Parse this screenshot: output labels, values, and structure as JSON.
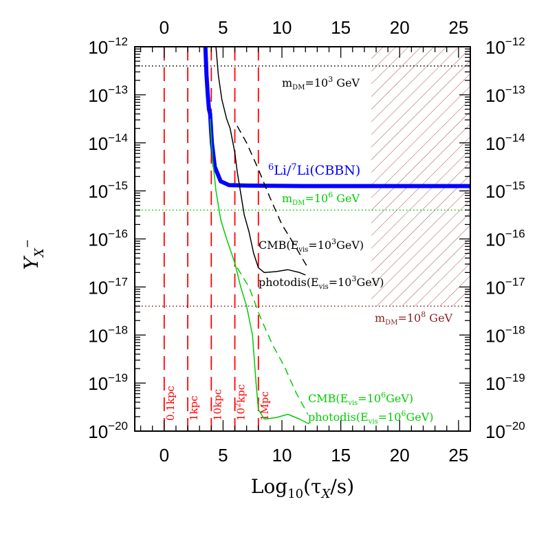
{
  "chart_data": {
    "type": "line",
    "title": "",
    "xlabel": {
      "main": "Log",
      "sub": "10",
      "rest": "(τ",
      "sub2": "X",
      "end": "/s)"
    },
    "ylabel": {
      "main": "Y",
      "sub": "X",
      "sup": "−"
    },
    "xlim": [
      -2.5,
      26
    ],
    "ylim_exponent": [
      -20,
      -12
    ],
    "yscale": "log",
    "x_ticks": [
      "0",
      "5",
      "10",
      "15",
      "20",
      "25"
    ],
    "x_tick_values": [
      0,
      5,
      10,
      15,
      20,
      25
    ],
    "y_tick_exponents": [
      -12,
      -13,
      -14,
      -15,
      -16,
      -17,
      -18,
      -19,
      -20
    ],
    "y_tick_base": "10",
    "grid": false,
    "horizontal_lines": [
      {
        "name": "m_DM=10^3 GeV",
        "log_y": -12.4,
        "color": "#000000"
      },
      {
        "name": "m_DM=10^6 GeV",
        "log_y": -15.4,
        "color": "#00cc00"
      },
      {
        "name": "m_DM=10^8 GeV",
        "log_y": -17.4,
        "color": "#8b2222"
      }
    ],
    "vertical_lines": [
      {
        "x": 0,
        "label": "0.1kpc"
      },
      {
        "x": 2,
        "label": "1kpc"
      },
      {
        "x": 4,
        "label": "10kpc"
      },
      {
        "x": 6,
        "label": "10^2kpc"
      },
      {
        "x": 8,
        "label": "1Mpc"
      }
    ],
    "hatched_region": {
      "x_from": 17.6,
      "x_to": 26,
      "log_y_from": -17.4,
      "log_y_to": -12,
      "color": "#a05050"
    },
    "series": [
      {
        "name": "6Li/7Li(CBBN)",
        "color": "#0000ff",
        "style": "thick",
        "points": [
          [
            3.5,
            -12
          ],
          [
            3.6,
            -12.6
          ],
          [
            3.7,
            -13.0
          ],
          [
            3.8,
            -13.3
          ],
          [
            3.9,
            -13.4
          ],
          [
            4.0,
            -13.8
          ],
          [
            4.05,
            -14.0
          ],
          [
            4.3,
            -14.5
          ],
          [
            4.8,
            -14.8
          ],
          [
            5.5,
            -14.88
          ],
          [
            7,
            -14.89
          ],
          [
            12,
            -14.9
          ],
          [
            26,
            -14.9
          ]
        ]
      },
      {
        "name": "CMB(E_vis=10^3GeV)",
        "color": "#000000",
        "style": "solid",
        "points": [
          [
            4.4,
            -12
          ],
          [
            4.6,
            -12.6
          ],
          [
            4.9,
            -13.1
          ],
          [
            5.3,
            -13.5
          ],
          [
            5.6,
            -13.7
          ],
          [
            6,
            -14.2
          ],
          [
            6.2,
            -14.6
          ],
          [
            6.5,
            -15.05
          ],
          [
            6.8,
            -15.5
          ],
          [
            7.2,
            -15.85
          ],
          [
            7.6,
            -16.3
          ],
          [
            8.0,
            -16.6
          ],
          [
            8.5,
            -16.7
          ],
          [
            9.5,
            -16.68
          ],
          [
            10.5,
            -16.64
          ],
          [
            11.5,
            -16.7
          ],
          [
            12,
            -16.75
          ]
        ]
      },
      {
        "name": "photodis(E_vis=10^3GeV)",
        "color": "#000000",
        "style": "dashed",
        "points": [
          [
            6.2,
            -13.65
          ],
          [
            7,
            -14.0
          ],
          [
            8,
            -14.55
          ],
          [
            9,
            -15.15
          ],
          [
            10,
            -15.7
          ],
          [
            11,
            -16.1
          ],
          [
            12.2,
            -16.6
          ]
        ]
      },
      {
        "name": "CMB(E_vis=10^6GeV)",
        "color": "#00cc00",
        "style": "solid",
        "points": [
          [
            3.9,
            -13.5
          ],
          [
            4.1,
            -14.3
          ],
          [
            4.4,
            -15.0
          ],
          [
            4.8,
            -15.6
          ],
          [
            5.3,
            -16.0
          ],
          [
            6,
            -16.5
          ],
          [
            6.5,
            -17.0
          ],
          [
            7,
            -17.4
          ],
          [
            7.5,
            -18.0
          ],
          [
            7.8,
            -19.0
          ],
          [
            8.0,
            -19.55
          ],
          [
            8.5,
            -19.75
          ],
          [
            9.5,
            -19.72
          ],
          [
            10.5,
            -19.65
          ],
          [
            11.5,
            -19.75
          ],
          [
            12.3,
            -19.85
          ]
        ]
      },
      {
        "name": "photodis(E_vis=10^6GeV)",
        "color": "#00cc00",
        "style": "dashed",
        "points": [
          [
            6.2,
            -16.6
          ],
          [
            7.2,
            -17.0
          ],
          [
            8.2,
            -17.65
          ],
          [
            9.2,
            -18.2
          ],
          [
            10.2,
            -18.65
          ],
          [
            11.2,
            -19.2
          ],
          [
            12.2,
            -19.65
          ]
        ]
      }
    ],
    "annotations": {
      "mdm3": {
        "pre": "m",
        "sub": "DM",
        "mid": "=10",
        "sup": "3",
        "post": " GeV",
        "color": "#000000"
      },
      "mdm6": {
        "pre": "m",
        "sub": "DM",
        "mid": "=10",
        "sup": "6",
        "post": " GeV",
        "color": "#00cc00"
      },
      "mdm8": {
        "pre": "m",
        "sub": "DM",
        "mid": "=10",
        "sup": "8",
        "post": " GeV",
        "color": "#8b2222"
      },
      "li": {
        "sup1": "6",
        "a": "Li/",
        "sup2": "7",
        "b": "Li(CBBN)",
        "color": "#0000ff"
      },
      "cmb3": {
        "pre": "CMB(E",
        "sub": "vis",
        "mid": "=10",
        "sup": "3",
        "post": "GeV)",
        "color": "#000000"
      },
      "pd3": {
        "pre": "photodis(E",
        "sub": "vis",
        "mid": "=10",
        "sup": "3",
        "post": "GeV)",
        "color": "#000000"
      },
      "cmb6": {
        "pre": "CMB(E",
        "sub": "vis",
        "mid": "=10",
        "sup": "6",
        "post": "GeV)",
        "color": "#00cc00"
      },
      "pd6": {
        "pre": "photodis(E",
        "sub": "vis",
        "mid": "=10",
        "sup": "6",
        "post": "GeV)",
        "color": "#00cc00"
      }
    }
  }
}
